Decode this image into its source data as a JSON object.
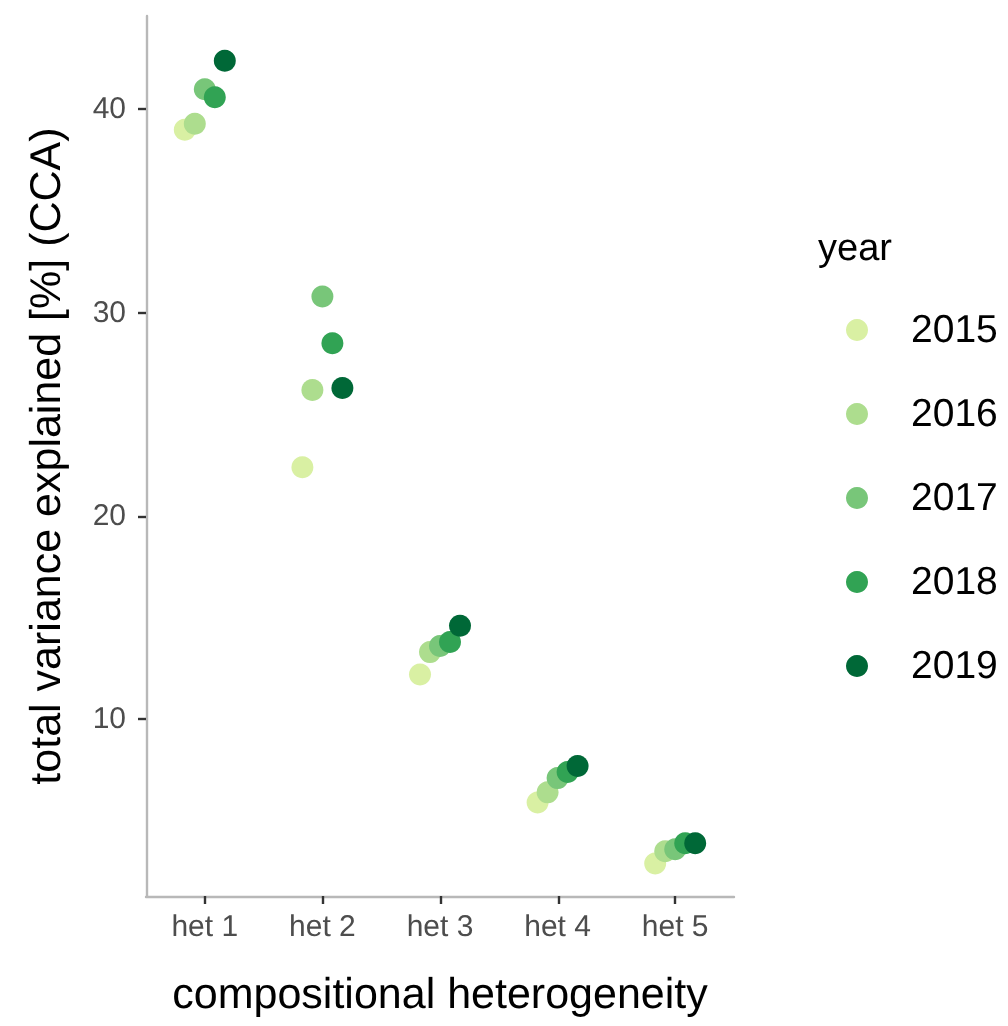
{
  "chart_data": {
    "type": "scatter",
    "xlabel": "compositional heterogeneity",
    "ylabel": "total variance explained [%] (CCA)",
    "legend_title": "year",
    "categories": [
      "het 1",
      "het 2",
      "het 3",
      "het 4",
      "het 5"
    ],
    "ylim": [
      1.3,
      44.6
    ],
    "yticks": [
      10,
      20,
      30,
      40
    ],
    "grid": false,
    "legend": "right",
    "marker": "circle",
    "series": [
      {
        "name": "2015",
        "color": "#d9f0a3",
        "values": [
          39.0,
          22.4,
          12.2,
          5.9,
          2.9
        ]
      },
      {
        "name": "2016",
        "color": "#addd8e",
        "values": [
          39.3,
          26.2,
          13.3,
          6.4,
          3.5
        ]
      },
      {
        "name": "2017",
        "color": "#78c679",
        "values": [
          41.0,
          30.8,
          13.6,
          7.1,
          3.6
        ]
      },
      {
        "name": "2018",
        "color": "#31a354",
        "values": [
          40.6,
          28.5,
          13.8,
          7.4,
          3.9
        ]
      },
      {
        "name": "2019",
        "color": "#006837",
        "values": [
          42.4,
          26.3,
          14.6,
          7.7,
          3.9
        ]
      }
    ]
  }
}
